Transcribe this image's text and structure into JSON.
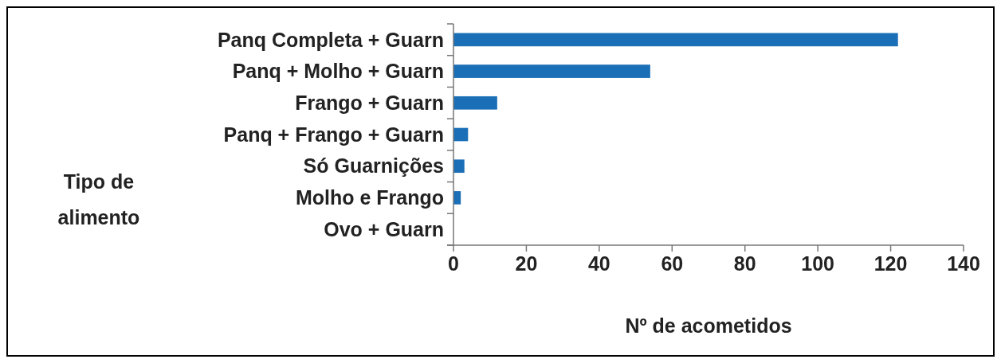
{
  "chart_data": {
    "type": "bar",
    "orientation": "horizontal",
    "xlabel": "Nº de acometidos",
    "ylabel": "Tipo de alimento",
    "categories": [
      "Panq Completa + Guarn",
      "Panq + Molho + Guarn",
      "Frango + Guarn",
      "Panq + Frango + Guarn",
      "Só Guarnições",
      "Molho e Frango",
      "Ovo + Guarn"
    ],
    "values": [
      122,
      54,
      12,
      4,
      3,
      2,
      0
    ],
    "color": "#1a6fb7",
    "xlim": [
      0,
      140
    ],
    "xticks": [
      0,
      20,
      40,
      60,
      80,
      100,
      120,
      140
    ],
    "grid": false
  }
}
